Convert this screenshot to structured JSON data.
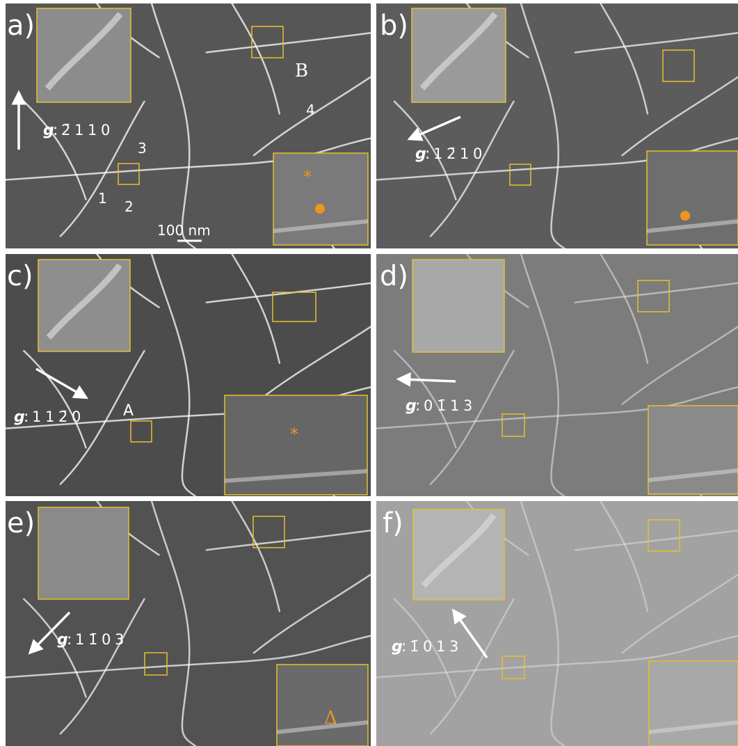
{
  "panels": [
    {
      "label": "a)",
      "g_symbol": "g",
      "g_separator": ":",
      "g_indices": [
        "2̄",
        "1",
        "1",
        "0"
      ],
      "annotations": [
        "3",
        "1",
        "2",
        "B",
        "4",
        "100 nm",
        "*"
      ]
    },
    {
      "label": "b)",
      "g_symbol": "g",
      "g_separator": ":",
      "g_indices": [
        "1",
        "2̄",
        "1",
        "0"
      ],
      "annotations": []
    },
    {
      "label": "c)",
      "g_symbol": "g",
      "g_separator": ":",
      "g_indices": [
        "1",
        "1",
        "2̄",
        "0"
      ],
      "annotations": [
        "A",
        "*"
      ]
    },
    {
      "label": "d)",
      "g_symbol": "g",
      "g_separator": ":",
      "g_indices": [
        "0",
        "1̄",
        "1",
        "3"
      ],
      "annotations": []
    },
    {
      "label": "e)",
      "g_symbol": "g",
      "g_separator": ":",
      "g_indices": [
        "1",
        "1̄",
        "0",
        "3"
      ],
      "annotations": [
        "Δ"
      ]
    },
    {
      "label": "f)",
      "g_symbol": "g",
      "g_separator": ":",
      "g_indices": [
        "1̄",
        "0",
        "1",
        "3"
      ],
      "annotations": []
    }
  ]
}
